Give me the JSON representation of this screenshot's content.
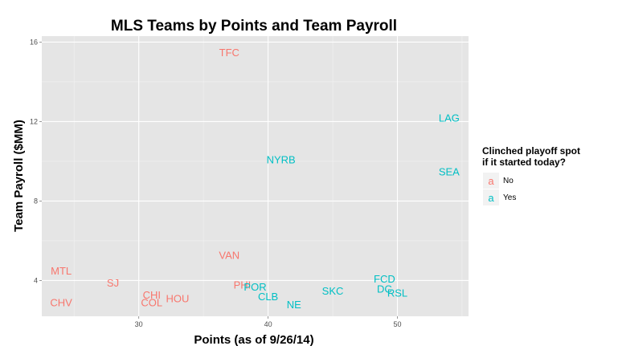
{
  "chart_data": {
    "type": "scatter",
    "title": "MLS Teams by Points and Team Payroll",
    "xlabel": "Points (as of 9/26/14)",
    "ylabel": "Team Payroll ($MM)",
    "xlim": [
      22.5,
      55.5
    ],
    "ylim": [
      2.2,
      16.3
    ],
    "x_ticks": [
      30,
      40,
      50
    ],
    "y_ticks": [
      4,
      8,
      12,
      16
    ],
    "grid": true,
    "background": "#e5e5e5",
    "legend": {
      "title_line1": "Clinched playoff spot",
      "title_line2": "if it started today?",
      "placement": "right",
      "entries": [
        {
          "key": "a",
          "label": "No",
          "color": "#f8766d"
        },
        {
          "key": "a",
          "label": "Yes",
          "color": "#00bfc4"
        }
      ]
    },
    "series": [
      {
        "name": "No",
        "color": "#f8766d",
        "points": [
          {
            "label": "TFC",
            "x": 37,
            "y": 15.5
          },
          {
            "label": "VAN",
            "x": 37,
            "y": 5.3
          },
          {
            "label": "MTL",
            "x": 24,
            "y": 4.5
          },
          {
            "label": "SJ",
            "x": 28,
            "y": 3.9
          },
          {
            "label": "CHI",
            "x": 31,
            "y": 3.3
          },
          {
            "label": "HOU",
            "x": 33,
            "y": 3.1
          },
          {
            "label": "COL",
            "x": 31,
            "y": 2.9
          },
          {
            "label": "CHV",
            "x": 24,
            "y": 2.9
          },
          {
            "label": "PHI",
            "x": 38,
            "y": 3.8
          }
        ]
      },
      {
        "name": "Yes",
        "color": "#00bfc4",
        "points": [
          {
            "label": "LAG",
            "x": 54,
            "y": 12.2
          },
          {
            "label": "SEA",
            "x": 54,
            "y": 9.5
          },
          {
            "label": "NYRB",
            "x": 41,
            "y": 10.1
          },
          {
            "label": "FCD",
            "x": 49,
            "y": 4.1
          },
          {
            "label": "DC",
            "x": 49,
            "y": 3.6
          },
          {
            "label": "RSL",
            "x": 50,
            "y": 3.4
          },
          {
            "label": "SKC",
            "x": 45,
            "y": 3.5
          },
          {
            "label": "POR",
            "x": 39,
            "y": 3.7
          },
          {
            "label": "CLB",
            "x": 40,
            "y": 3.2
          },
          {
            "label": "NE",
            "x": 42,
            "y": 2.8
          }
        ]
      }
    ]
  }
}
